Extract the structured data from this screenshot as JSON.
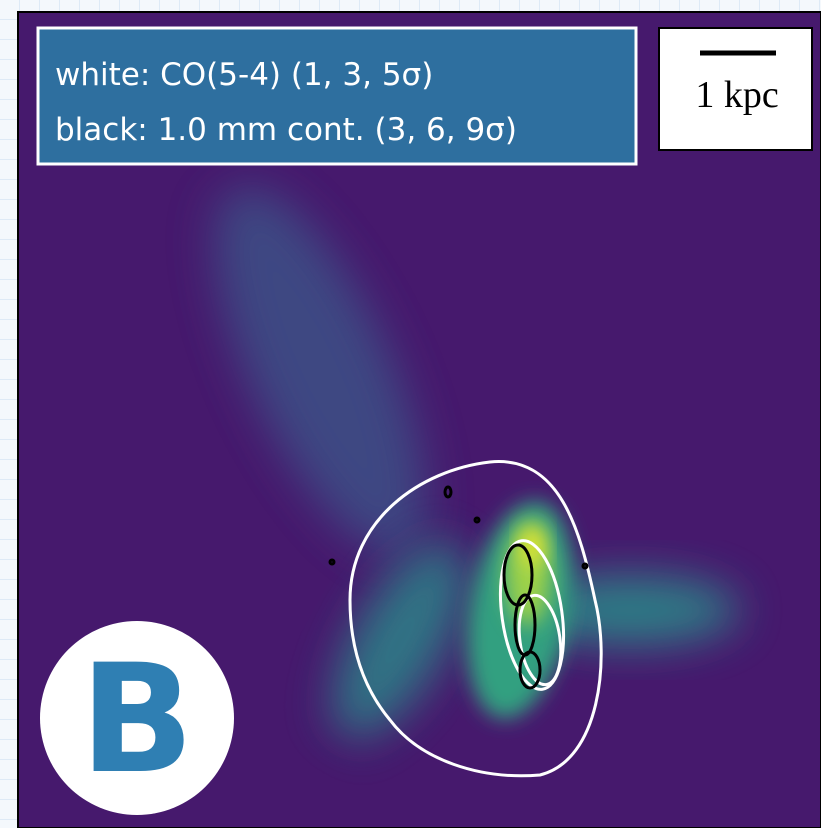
{
  "legend": {
    "lines": [
      "white: CO(5-4) (1, 3, 5σ)",
      "black: 1.0 mm cont. (3, 6, 9σ)"
    ]
  },
  "scale_bar": {
    "label": "1 kpc"
  },
  "panel_label": "B"
}
